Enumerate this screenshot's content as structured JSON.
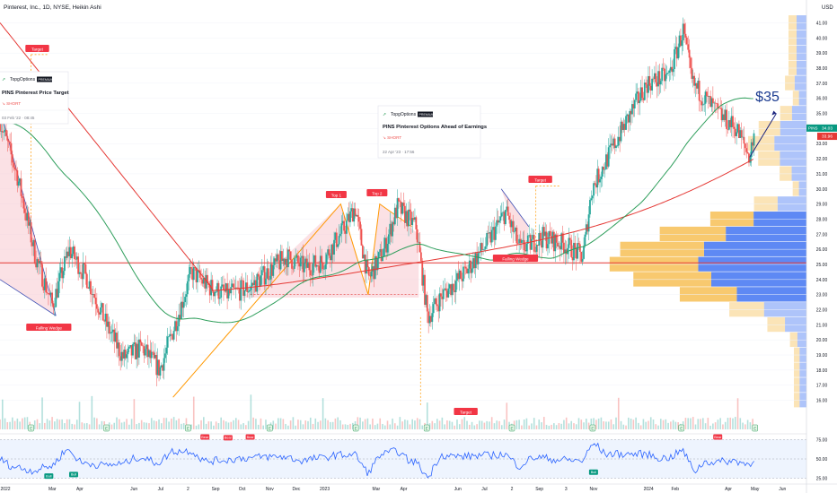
{
  "header": {
    "title": "Pinterest, Inc., 1D, NYSE, Heikin Ashi",
    "currency": "USD"
  },
  "colors": {
    "up": "#26a69a",
    "down": "#ef5350",
    "ma_red": "#e53935",
    "ma_green": "#2e9e5b",
    "wedge_fill": "#f8c9cf",
    "vp_up": "#f7c35f",
    "vp_down": "#4c7cf3",
    "rsi_line": "#2962ff",
    "target": "#ff9800",
    "accent": "#2962ff"
  },
  "price_axis": {
    "ticks": [
      "41.00",
      "40.00",
      "39.00",
      "38.00",
      "37.00",
      "36.00",
      "35.00",
      "34.00",
      "33.00",
      "32.00",
      "31.00",
      "30.00",
      "29.00",
      "28.00",
      "27.00",
      "26.00",
      "25.00",
      "24.00",
      "23.00",
      "22.00",
      "21.00",
      "20.00",
      "19.00",
      "18.00",
      "17.00",
      "16.00"
    ],
    "last_price_label": "PINS",
    "last_price": "34.03",
    "ma_price": "33.96"
  },
  "time_axis": {
    "labels": [
      "2022",
      "Mar",
      "Apr",
      "Jun",
      "Jul",
      "2",
      "Sep",
      "Oct",
      "Nov",
      "Dec",
      "2023",
      "Mar",
      "Apr",
      "Jun",
      "Jul",
      "2",
      "Sep",
      "3",
      "Nov",
      "2024",
      "Feb",
      "Apr",
      "May",
      "Jun"
    ]
  },
  "rsi_axis": {
    "ticks": [
      "75.00",
      "50.00",
      "25.00"
    ]
  },
  "annotations": {
    "card1": {
      "brand": "TopgOptions",
      "badge": "PREMIUM",
      "title": "PINS Pinterest Price Target",
      "tag": "SHORT",
      "date": "03 Feb '22 · 08:45"
    },
    "card2": {
      "brand": "TopgOptions",
      "badge": "PREMIUM",
      "title": "PINS Pinterest Options Ahead of Earnings",
      "tag": "SHORT",
      "date": "22 Apr '23 · 17:56"
    },
    "target_labels": [
      "Target",
      "Target",
      "Target"
    ],
    "top_labels": [
      "Top 1",
      "Top 2"
    ],
    "wedge_labels": [
      "Falling Wedge",
      "Falling Wedge"
    ],
    "price_target": "$35",
    "rsi_bear": [
      "Bear",
      "Bear",
      "Bear",
      "Bear"
    ],
    "rsi_bull": [
      "Bull",
      "Bull",
      "Bull"
    ],
    "earnings_marker": "E"
  },
  "chart_data": {
    "type": "candlestick",
    "title": "Pinterest, Inc., 1D, NYSE, Heikin Ashi",
    "ylim": [
      15.5,
      41.8
    ],
    "xlim": [
      "2022-01-01",
      "2024-06-28"
    ],
    "price_path": [
      [
        "2022-01-01",
        34.5
      ],
      [
        "2022-01-20",
        31.0
      ],
      [
        "2022-02-10",
        25.5
      ],
      [
        "2022-03-01",
        22.3
      ],
      [
        "2022-03-20",
        26.0
      ],
      [
        "2022-04-10",
        24.0
      ],
      [
        "2022-05-01",
        21.0
      ],
      [
        "2022-05-20",
        18.8
      ],
      [
        "2022-06-10",
        19.5
      ],
      [
        "2022-06-30",
        18.0
      ],
      [
        "2022-07-20",
        21.5
      ],
      [
        "2022-08-05",
        24.5
      ],
      [
        "2022-08-25",
        23.5
      ],
      [
        "2022-09-15",
        23.0
      ],
      [
        "2022-10-10",
        23.5
      ],
      [
        "2022-10-30",
        24.5
      ],
      [
        "2022-11-20",
        25.5
      ],
      [
        "2022-12-10",
        24.8
      ],
      [
        "2022-12-31",
        25.2
      ],
      [
        "2023-01-25",
        27.5
      ],
      [
        "2023-02-05",
        28.8
      ],
      [
        "2023-02-20",
        24.0
      ],
      [
        "2023-03-10",
        26.0
      ],
      [
        "2023-03-25",
        28.8
      ],
      [
        "2023-04-15",
        27.5
      ],
      [
        "2023-04-28",
        21.5
      ],
      [
        "2023-05-15",
        23.0
      ],
      [
        "2023-06-10",
        24.5
      ],
      [
        "2023-07-05",
        26.5
      ],
      [
        "2023-07-25",
        28.5
      ],
      [
        "2023-08-10",
        26.0
      ],
      [
        "2023-09-05",
        26.8
      ],
      [
        "2023-09-30",
        26.3
      ],
      [
        "2023-10-20",
        25.5
      ],
      [
        "2023-10-30",
        30.0
      ],
      [
        "2023-11-25",
        33.0
      ],
      [
        "2023-12-31",
        37.0
      ],
      [
        "2024-01-25",
        37.5
      ],
      [
        "2024-02-10",
        40.5
      ],
      [
        "2024-02-20",
        37.0
      ],
      [
        "2024-03-20",
        35.0
      ],
      [
        "2024-04-10",
        34.0
      ],
      [
        "2024-04-25",
        32.1
      ],
      [
        "2024-05-01",
        34.0
      ]
    ],
    "resistance_level": 25.1,
    "projection": {
      "from": [
        "2024-04-25",
        32.1
      ],
      "to": [
        "2024-05-25",
        35.0
      ],
      "label": "$35"
    },
    "rsi_ylim": [
      20,
      80
    ]
  }
}
